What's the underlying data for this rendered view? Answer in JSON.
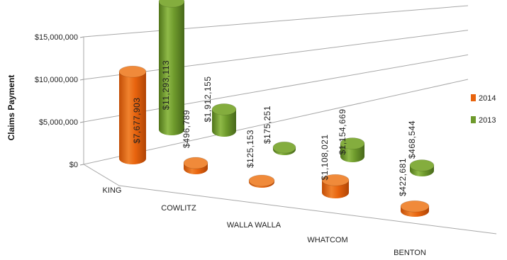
{
  "chart_data": {
    "type": "bar",
    "style": "3d-cylinder",
    "ylabel": "Claims Payment",
    "xlabel": "",
    "title": "",
    "ylim": [
      0,
      15000000
    ],
    "yticks": [
      0,
      5000000,
      10000000,
      15000000
    ],
    "ytick_labels": [
      "$0",
      "$5,000,000",
      "$10,000,000",
      "$15,000,000"
    ],
    "categories": [
      "KING",
      "COWLITZ",
      "WALLA WALLA",
      "WHATCOM",
      "BENTON"
    ],
    "series": [
      {
        "name": "2014",
        "color": "#e8640e",
        "values": [
          7677903,
          496789,
          125153,
          1108021,
          422681
        ],
        "labels": [
          "$7,677,903",
          "$496,789",
          "$125,153",
          "$1,108,021",
          "$422,681"
        ]
      },
      {
        "name": "2013",
        "color": "#6e9a2c",
        "values": [
          11293113,
          1912155,
          175251,
          1154669,
          468544
        ],
        "labels": [
          "$11,293,113",
          "$1,912,155",
          "$175,251",
          "$1,154,669",
          "$468,544"
        ]
      }
    ],
    "legend": [
      "2014",
      "2013"
    ],
    "legend_position": "right",
    "grid": true
  }
}
